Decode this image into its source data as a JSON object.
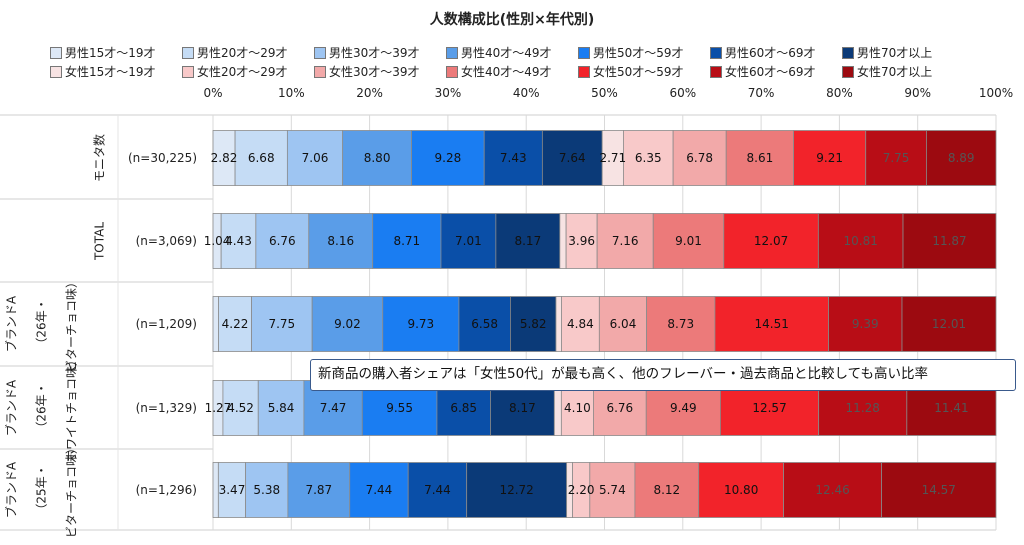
{
  "chart_data": {
    "type": "bar",
    "orientation": "horizontal",
    "stacked": "100%",
    "title": "人数構成比(性別×年代別)",
    "xlim": [
      0,
      100
    ],
    "x_ticks": [
      "0%",
      "10%",
      "20%",
      "30%",
      "40%",
      "50%",
      "60%",
      "70%",
      "80%",
      "90%",
      "100%"
    ],
    "legend_position": "top",
    "categories": [
      {
        "label": "モニタ数",
        "n": "(n=30,225)"
      },
      {
        "label": "TOTAL",
        "n": "(n=3,069)"
      },
      {
        "label": "ブランドA（26年・ビターチョコ味）",
        "n": "(n=1,209)"
      },
      {
        "label": "ブランドA（26年・ホワイトチョコ味）",
        "n": "(n=1,329)"
      },
      {
        "label": "ブランドA（25年・ビターチョコ味）",
        "n": "(n=1,296)"
      }
    ],
    "series": [
      {
        "name": "男性15才～19才",
        "color": "#dde8f6",
        "text_color": "#111111",
        "values": [
          2.82,
          1.04,
          0.7,
          1.27,
          0.68
        ]
      },
      {
        "name": "男性20才～29才",
        "color": "#c5dcf5",
        "text_color": "#111111",
        "values": [
          6.68,
          4.43,
          4.22,
          4.52,
          3.47
        ]
      },
      {
        "name": "男性30才～39才",
        "color": "#9ec5f2",
        "text_color": "#111111",
        "values": [
          7.06,
          6.76,
          7.75,
          5.84,
          5.38
        ]
      },
      {
        "name": "男性40才～49才",
        "color": "#5a9de8",
        "text_color": "#111111",
        "values": [
          8.8,
          8.16,
          9.02,
          7.47,
          7.87
        ]
      },
      {
        "name": "男性50才～59才",
        "color": "#1a7df2",
        "text_color": "#111111",
        "values": [
          9.28,
          8.71,
          9.73,
          9.55,
          7.44
        ]
      },
      {
        "name": "男性60才～69才",
        "color": "#0a4fa8",
        "text_color": "#111111",
        "values": [
          7.43,
          7.01,
          6.58,
          6.85,
          7.44
        ]
      },
      {
        "name": "男性70才以上",
        "color": "#0b3a78",
        "text_color": "#111111",
        "values": [
          7.64,
          8.17,
          5.82,
          8.17,
          12.72
        ]
      },
      {
        "name": "女性15才～19才",
        "color": "#f7e3e3",
        "text_color": "#111111",
        "values": [
          2.71,
          0.8,
          0.7,
          0.9,
          0.75
        ]
      },
      {
        "name": "女性20才～29才",
        "color": "#f8c9c9",
        "text_color": "#111111",
        "values": [
          6.35,
          3.96,
          4.84,
          4.1,
          2.2
        ]
      },
      {
        "name": "女性30才～39才",
        "color": "#f2a9a9",
        "text_color": "#111111",
        "values": [
          6.78,
          7.16,
          6.04,
          6.76,
          5.74
        ]
      },
      {
        "name": "女性40才～49才",
        "color": "#ec7a7a",
        "text_color": "#111111",
        "values": [
          8.61,
          9.01,
          8.73,
          9.49,
          8.12
        ]
      },
      {
        "name": "女性50才～59才",
        "color": "#f2232a",
        "text_color": "#111111",
        "values": [
          9.21,
          12.07,
          14.51,
          12.57,
          10.8
        ]
      },
      {
        "name": "女性60才～69才",
        "color": "#b80d16",
        "text_color": "#555555",
        "values": [
          7.75,
          10.81,
          9.39,
          11.28,
          12.46
        ]
      },
      {
        "name": "女性70才以上",
        "color": "#9c0a10",
        "text_color": "#555555",
        "values": [
          8.89,
          11.87,
          12.01,
          11.41,
          14.57
        ]
      }
    ],
    "labeled_values": [
      [
        "2.82",
        "6.68",
        "7.06",
        "8.80",
        "9.28",
        "7.43",
        "7.64",
        "2.71",
        "6.35",
        "6.78",
        "8.61",
        "9.21",
        "7.75",
        "8.89"
      ],
      [
        "1.04",
        "4.43",
        "6.76",
        "8.16",
        "8.71",
        "7.01",
        "8.17",
        "",
        "3.96",
        "7.16",
        "9.01",
        "12.07",
        "10.81",
        "11.87"
      ],
      [
        "",
        "4.22",
        "7.75",
        "9.02",
        "9.73",
        "6.58",
        "5.82",
        "",
        "4.84",
        "6.04",
        "8.73",
        "14.51",
        "9.39",
        "12.01"
      ],
      [
        "1.27",
        "4.52",
        "5.84",
        "7.47",
        "9.55",
        "6.85",
        "8.17",
        "",
        "4.10",
        "6.76",
        "9.49",
        "12.57",
        "11.28",
        "11.41"
      ],
      [
        "",
        "3.47",
        "5.38",
        "7.87",
        "7.44",
        "7.44",
        "12.72",
        "",
        "2.20",
        "5.74",
        "8.12",
        "10.80",
        "12.46",
        "14.57"
      ]
    ],
    "callout": "新商品の購入者シェアは「女性50代」が最も高く、他のフレーバー・過去商品と比較しても高い比率"
  }
}
